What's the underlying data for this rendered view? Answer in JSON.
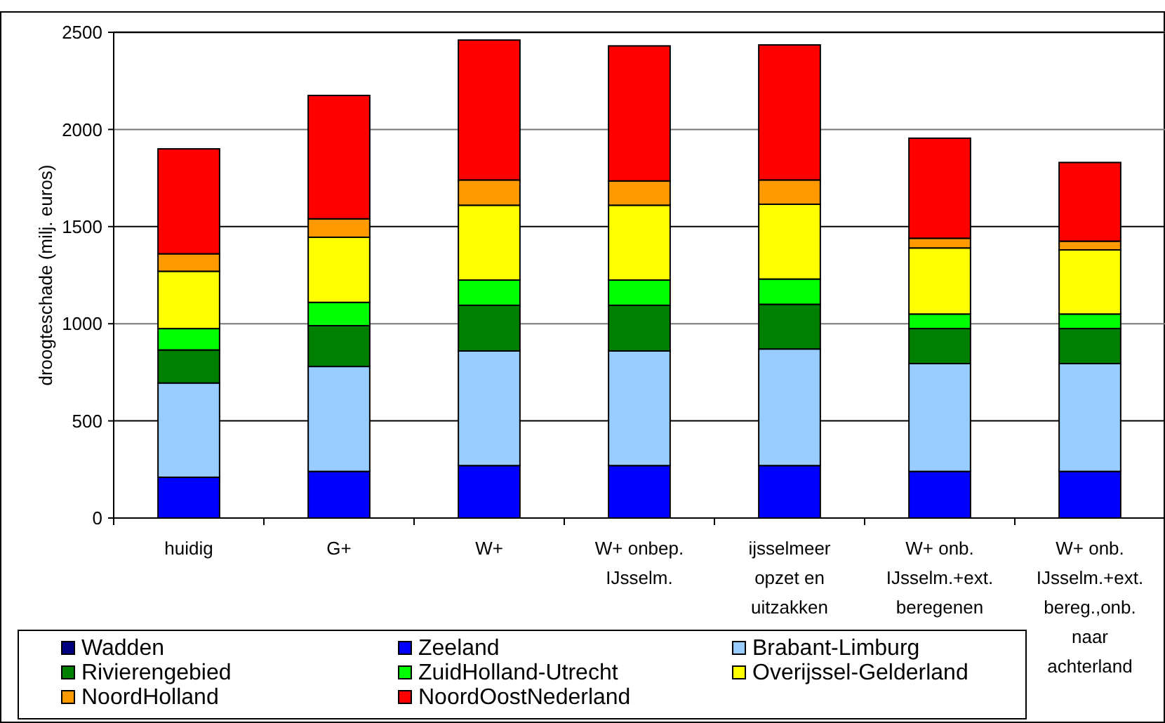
{
  "chart_data": {
    "type": "bar",
    "stacked": true,
    "ylabel": "droogteschade (milj. euros)",
    "categories": [
      "huidig",
      "G+",
      "W+",
      "W+ onbep. IJsselm.",
      "ijsselmeer opzet en uitzakken",
      "W+ onb. IJsselm.+ext. beregenen",
      "W+ onb. IJsselm.+ext. bereg.,onb. naar achterland"
    ],
    "series": [
      {
        "name": "Wadden",
        "color": "#000080",
        "values": [
          0,
          0,
          0,
          0,
          0,
          0,
          0
        ]
      },
      {
        "name": "Zeeland",
        "color": "#0000ff",
        "values": [
          210,
          240,
          270,
          270,
          270,
          240,
          240
        ]
      },
      {
        "name": "Brabant-Limburg",
        "color": "#99ccff",
        "values": [
          485,
          540,
          590,
          590,
          600,
          555,
          555
        ]
      },
      {
        "name": "Rivierengebied",
        "color": "#008000",
        "values": [
          170,
          210,
          235,
          235,
          230,
          180,
          180
        ]
      },
      {
        "name": "ZuidHolland-Utrecht",
        "color": "#00ff00",
        "values": [
          110,
          120,
          130,
          130,
          130,
          75,
          75
        ]
      },
      {
        "name": "Overijssel-Gelderland",
        "color": "#ffff00",
        "values": [
          295,
          335,
          385,
          385,
          385,
          340,
          330
        ]
      },
      {
        "name": "NoordHolland",
        "color": "#ff9900",
        "values": [
          90,
          95,
          130,
          125,
          125,
          50,
          45
        ]
      },
      {
        "name": "NoordOostNederland",
        "color": "#ff0000",
        "values": [
          540,
          635,
          720,
          695,
          695,
          515,
          405
        ]
      }
    ],
    "ylim": [
      0,
      2500
    ],
    "yticks": [
      0,
      500,
      1000,
      1500,
      2000,
      2500
    ],
    "grid": "y",
    "legend": "bottom"
  }
}
